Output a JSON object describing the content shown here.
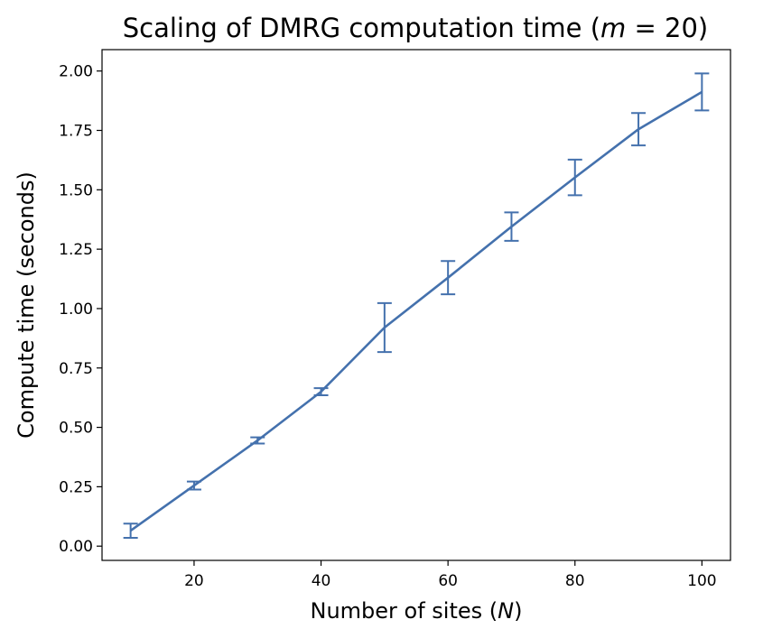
{
  "chart_data": {
    "type": "line",
    "title": "Scaling of DMRG computation time (m = 20)",
    "xlabel": "Number of sites (N)",
    "ylabel": "Compute time (seconds)",
    "x": [
      10,
      20,
      30,
      40,
      50,
      60,
      70,
      80,
      90,
      100
    ],
    "series": [
      {
        "values": [
          0.065,
          0.255,
          0.445,
          0.65,
          0.92,
          1.13,
          1.345,
          1.552,
          1.755,
          1.912
        ],
        "yerr": [
          0.03,
          0.017,
          0.013,
          0.015,
          0.103,
          0.07,
          0.06,
          0.075,
          0.068,
          0.078
        ],
        "color": "#4471ad"
      }
    ],
    "xticks": [
      "20",
      "40",
      "60",
      "80",
      "100"
    ],
    "xtick_values": [
      20,
      40,
      60,
      80,
      100
    ],
    "yticks": [
      "0.00",
      "0.25",
      "0.50",
      "0.75",
      "1.00",
      "1.25",
      "1.50",
      "1.75",
      "2.00"
    ],
    "ytick_values": [
      0,
      0.25,
      0.5,
      0.75,
      1.0,
      1.25,
      1.5,
      1.75,
      2.0
    ],
    "xlim": [
      5.5,
      104.5
    ],
    "ylim": [
      -0.06,
      2.09
    ],
    "grid": false,
    "legend": "none"
  }
}
